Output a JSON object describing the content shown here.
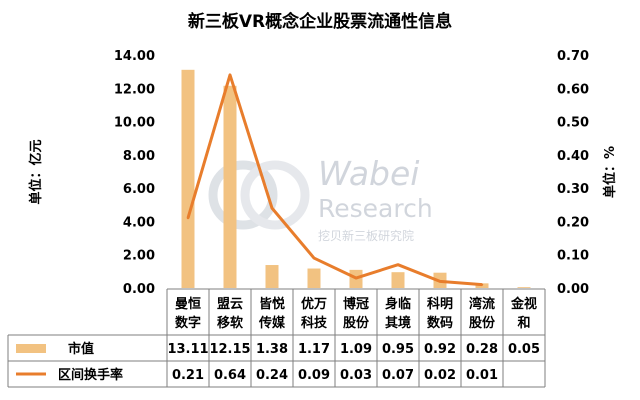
{
  "chart_data": {
    "type": "bar",
    "title": "新三板VR概念企业股票流通性信息",
    "ylabel_left": "单位：亿元",
    "ylabel_right": "单位：%",
    "ylim_left": [
      0,
      14
    ],
    "ylim_right": [
      0,
      0.7
    ],
    "yticks_left": [
      "0.00",
      "2.00",
      "4.00",
      "6.00",
      "8.00",
      "10.00",
      "12.00",
      "14.00"
    ],
    "yticks_right": [
      "0.00",
      "0.10",
      "0.20",
      "0.30",
      "0.40",
      "0.50",
      "0.60",
      "0.70"
    ],
    "categories": [
      [
        "曼恒",
        "数字"
      ],
      [
        "盟云",
        "移软"
      ],
      [
        "皆悦",
        "传媒"
      ],
      [
        "优万",
        "科技"
      ],
      [
        "博冠",
        "股份"
      ],
      [
        "身临",
        "其境"
      ],
      [
        "科明",
        "数码"
      ],
      [
        "湾流",
        "股份"
      ],
      [
        "金视",
        "和"
      ]
    ],
    "series": [
      {
        "name": "市值",
        "type": "bar",
        "axis": "left",
        "color": "#f2c281",
        "values": [
          13.11,
          12.15,
          1.38,
          1.17,
          1.09,
          0.95,
          0.92,
          0.28,
          0.05
        ],
        "labels": [
          "13.11",
          "12.15",
          "1.38",
          "1.17",
          "1.09",
          "0.95",
          "0.92",
          "0.28",
          "0.05"
        ]
      },
      {
        "name": "区间换手率",
        "type": "line",
        "axis": "right",
        "color": "#e87d2c",
        "values": [
          0.21,
          0.64,
          0.24,
          0.09,
          0.03,
          0.07,
          0.02,
          0.01,
          null
        ],
        "labels": [
          "0.21",
          "0.64",
          "0.24",
          "0.09",
          "0.03",
          "0.07",
          "0.02",
          "0.01",
          ""
        ]
      }
    ],
    "grid": false,
    "legend": "table-below"
  },
  "watermark": {
    "brand": "Wabei",
    "sub": "Research",
    "caption": "挖贝新三板研究院"
  }
}
